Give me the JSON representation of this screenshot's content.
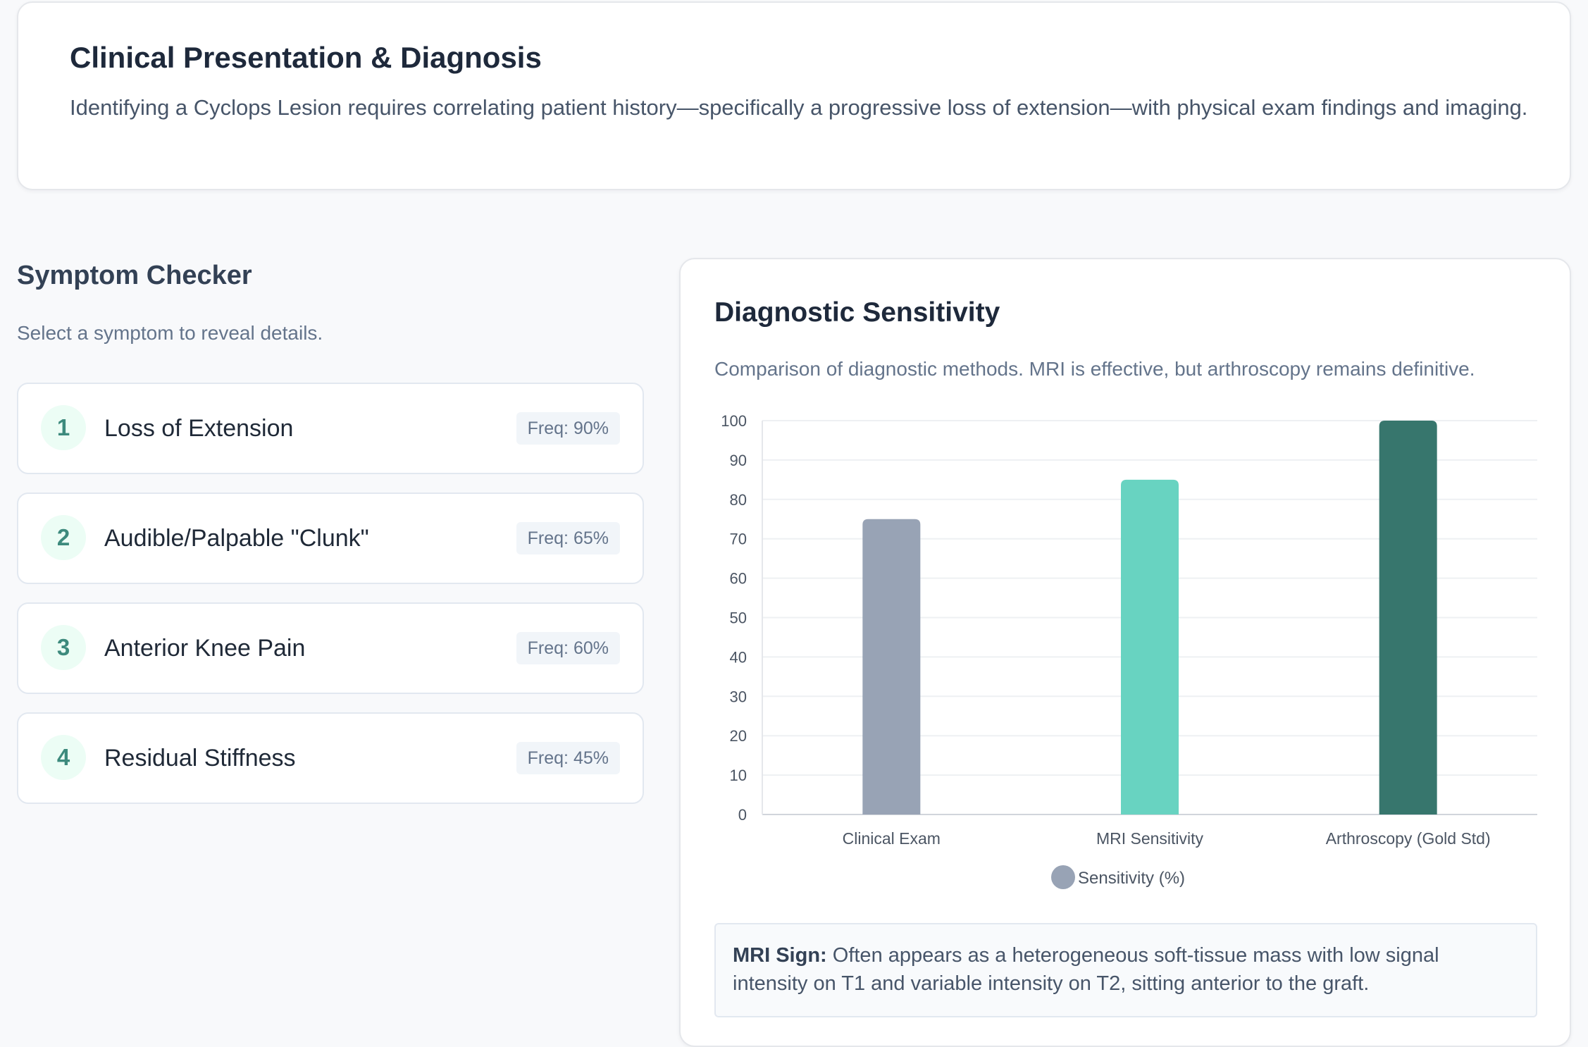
{
  "intro": {
    "title": "Clinical Presentation & Diagnosis",
    "text": "Identifying a Cyclops Lesion requires correlating patient history—specifically a progressive loss of extension—with physical exam findings and imaging."
  },
  "symptoms": {
    "heading": "Symptom Checker",
    "subtitle": "Select a symptom to reveal details.",
    "items": [
      {
        "num": "1",
        "label": "Loss of Extension",
        "freq": "Freq: 90%"
      },
      {
        "num": "2",
        "label": "Audible/Palpable \"Clunk\"",
        "freq": "Freq: 65%"
      },
      {
        "num": "3",
        "label": "Anterior Knee Pain",
        "freq": "Freq: 60%"
      },
      {
        "num": "4",
        "label": "Residual Stiffness",
        "freq": "Freq: 45%"
      }
    ]
  },
  "diagnostic": {
    "title": "Diagnostic Sensitivity",
    "description": "Comparison of diagnostic methods. MRI is effective, but arthroscopy remains definitive.",
    "mri_label": "MRI Sign:",
    "mri_text": "Often appears as a heterogeneous soft-tissue mass with low signal intensity on T1 and variable intensity on T2, sitting anterior to the graft."
  },
  "chart_data": {
    "type": "bar",
    "categories": [
      "Clinical Exam",
      "MRI Sensitivity",
      "Arthroscopy (Gold Std)"
    ],
    "series": [
      {
        "name": "Sensitivity (%)",
        "values": [
          75,
          85,
          100
        ]
      }
    ],
    "colors": [
      "#94a3b8",
      "#5eead4",
      "#2f7268"
    ],
    "bar_colors": [
      "#98a3b5",
      "#68d3c1",
      "#37766d"
    ],
    "legend_color": "#98a3b5",
    "ylim": [
      0,
      100
    ],
    "yticks": [
      0,
      10,
      20,
      30,
      40,
      50,
      60,
      70,
      80,
      90,
      100
    ],
    "grid": true,
    "legend_position": "bottom"
  }
}
